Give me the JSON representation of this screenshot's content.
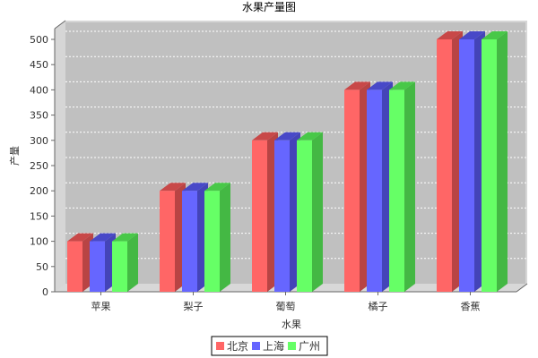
{
  "chart_data": {
    "type": "bar",
    "title": "水果产量图",
    "xlabel": "水果",
    "ylabel": "产量",
    "categories": [
      "苹果",
      "梨子",
      "葡萄",
      "橘子",
      "香蕉"
    ],
    "series": [
      {
        "name": "北京",
        "values": [
          100,
          200,
          300,
          400,
          500
        ]
      },
      {
        "name": "上海",
        "values": [
          100,
          200,
          300,
          400,
          500
        ]
      },
      {
        "name": "广州",
        "values": [
          100,
          200,
          300,
          400,
          500
        ]
      }
    ],
    "ylim": [
      0,
      500
    ],
    "yticks": [
      0,
      50,
      100,
      150,
      200,
      250,
      300,
      350,
      400,
      450,
      500
    ],
    "grid": true,
    "legend_position": "bottom",
    "style": "3d",
    "colors": {
      "series": [
        "#ff6666",
        "#6666ff",
        "#66ff66"
      ],
      "series_top": [
        "#c84848",
        "#4848c8",
        "#48c848"
      ],
      "series_side": [
        "#b84444",
        "#4444b8",
        "#44b844"
      ],
      "plot_background": "#c0c0c0",
      "plot_wall": "#d6d6d6",
      "grid": "#ffffff"
    }
  }
}
